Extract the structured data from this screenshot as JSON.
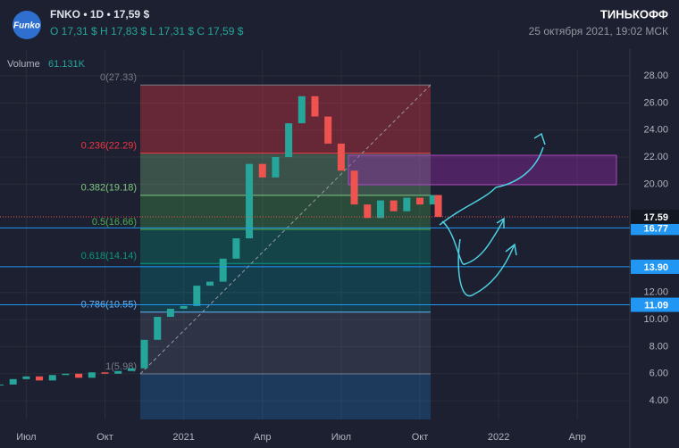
{
  "chart_data": {
    "type": "candlestick",
    "symbol": "FNKO • 1D • 17,59 $",
    "logo": "Funko",
    "ohlc": "O 17,31 $  H 17,83 $  L 17,31 $  C 17,59 $",
    "brand": "ТИНЬКОФФ",
    "datetime": "25 октября 2021, 19:02 МСК",
    "volume_label": "Volume",
    "volume": "61.131K",
    "x": [
      0,
      0.5,
      1,
      1.5,
      2,
      2.5,
      3,
      3.5,
      4,
      4.5,
      5,
      5.5,
      6,
      6.5,
      7,
      7.5,
      8,
      8.5,
      9,
      9.5,
      10,
      10.5,
      11,
      11.5,
      12,
      12.5,
      13,
      13.5,
      14,
      14.5,
      15,
      15.5,
      16,
      16.5,
      16.7
    ],
    "values": [
      5.2,
      5.6,
      5.8,
      5.5,
      5.9,
      6.0,
      5.7,
      6.1,
      6.0,
      6.2,
      6.4,
      8.5,
      10.2,
      10.8,
      11.0,
      12.5,
      12.8,
      14.5,
      16.0,
      21.5,
      20.5,
      22.0,
      24.5,
      26.5,
      25.0,
      23.0,
      21.0,
      18.5,
      17.5,
      18.8,
      18.0,
      19.0,
      18.5,
      19.2,
      17.59
    ],
    "xlim": [
      0,
      24
    ],
    "ylim": [
      2.62,
      29.52
    ],
    "xticks": [
      {
        "value": 1,
        "label": "Июл"
      },
      {
        "value": 4,
        "label": "Окт"
      },
      {
        "value": 7,
        "label": "2021"
      },
      {
        "value": 10,
        "label": "Апр"
      },
      {
        "value": 13,
        "label": "Июл"
      },
      {
        "value": 16,
        "label": "Окт"
      },
      {
        "value": 19,
        "label": "2022"
      },
      {
        "value": 22,
        "label": "Апр"
      }
    ],
    "yticks": [
      {
        "value": 4,
        "label": "4.00"
      },
      {
        "value": 6,
        "label": "6.00"
      },
      {
        "value": 8,
        "label": "8.00"
      },
      {
        "value": 10,
        "label": "10.00"
      },
      {
        "value": 12,
        "label": "12.00"
      },
      {
        "value": 20,
        "label": "20.00"
      },
      {
        "value": 22,
        "label": "22.00"
      },
      {
        "value": 24,
        "label": "24.00"
      },
      {
        "value": 26,
        "label": "26.00"
      },
      {
        "value": 28,
        "label": "28.00"
      }
    ],
    "fib_levels": [
      {
        "value": 27.33,
        "label": "0(27.33)"
      },
      {
        "value": 22.29,
        "label": "0.236(22.29)"
      },
      {
        "value": 19.18,
        "label": "0.382(19.18)"
      },
      {
        "value": 16.66,
        "label": "0.5(16.66)"
      },
      {
        "value": 14.14,
        "label": "0.618(14.14)"
      },
      {
        "value": 10.55,
        "label": "0.786(10.55)"
      },
      {
        "value": 5.98,
        "label": "1(5.98)"
      }
    ],
    "price_lines": [
      16.77,
      {
        "value": 13.9,
        "label": "13.90"
      },
      11.09
    ],
    "last_price": 17.59
  }
}
